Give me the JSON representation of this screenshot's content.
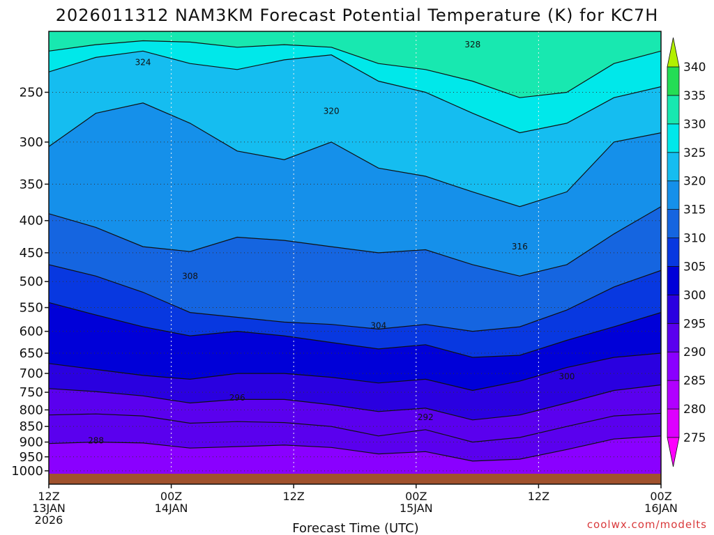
{
  "chart_data": {
    "type": "heatmap",
    "title": "2026011312 NAM3KM Forecast Potential Temperature (K) for KC7H",
    "xlabel": "Forecast Time (UTC)",
    "ylabel": "",
    "credit": "coolwx.com/modelts",
    "x_hours_range": [
      0,
      60
    ],
    "x_ticks": [
      {
        "hour": 0,
        "lines": [
          "12Z",
          "13JAN",
          "2026"
        ]
      },
      {
        "hour": 12,
        "lines": [
          "00Z",
          "14JAN"
        ]
      },
      {
        "hour": 24,
        "lines": [
          "12Z"
        ]
      },
      {
        "hour": 36,
        "lines": [
          "00Z",
          "15JAN"
        ]
      },
      {
        "hour": 48,
        "lines": [
          "12Z"
        ]
      },
      {
        "hour": 60,
        "lines": [
          "00Z",
          "16JAN"
        ]
      }
    ],
    "y_axis": "pressure (log scale, inverted)",
    "y_range_hpa": [
      1050,
      200
    ],
    "y_ticks": [
      250,
      300,
      350,
      400,
      450,
      500,
      550,
      600,
      650,
      700,
      750,
      800,
      850,
      900,
      950,
      1000
    ],
    "grid": true,
    "colorbar": {
      "levels": [
        275,
        280,
        285,
        290,
        295,
        300,
        305,
        310,
        315,
        320,
        325,
        330,
        335,
        340
      ],
      "colors": [
        "#ff00ff",
        "#dd00ff",
        "#b100ff",
        "#8a00ff",
        "#5a00ee",
        "#2a00e0",
        "#0000d8",
        "#0838e0",
        "#1565e0",
        "#1590ea",
        "#15bdf0",
        "#00e8ea",
        "#18e8b0",
        "#24dd55",
        "#6be818",
        "#b2f000"
      ]
    },
    "series": [
      {
        "theta": 288,
        "label_hpa": 895,
        "pressure_hpa": [
          905,
          900,
          903,
          920,
          915,
          910,
          918,
          940,
          932,
          965,
          958,
          925,
          890,
          880
        ]
      },
      {
        "theta": 292,
        "label_hpa": 822,
        "pressure_hpa": [
          815,
          812,
          818,
          840,
          835,
          838,
          850,
          880,
          860,
          900,
          885,
          850,
          818,
          810
        ]
      },
      {
        "theta": 296,
        "label_hpa": 765,
        "pressure_hpa": [
          740,
          748,
          760,
          780,
          770,
          770,
          785,
          805,
          795,
          830,
          815,
          780,
          745,
          730
        ]
      },
      {
        "theta": 300,
        "label_hpa": 708,
        "pressure_hpa": [
          675,
          690,
          705,
          715,
          700,
          700,
          710,
          725,
          715,
          745,
          720,
          685,
          660,
          650
        ]
      },
      {
        "theta": 304,
        "label_hpa": 588,
        "pressure_hpa": [
          540,
          565,
          590,
          610,
          600,
          610,
          625,
          640,
          630,
          660,
          655,
          620,
          590,
          560
        ]
      },
      {
        "theta": 308,
        "label_hpa": 490,
        "pressure_hpa": [
          470,
          490,
          520,
          560,
          570,
          580,
          585,
          595,
          585,
          600,
          590,
          555,
          510,
          480
        ]
      },
      {
        "theta": 316,
        "label_hpa": 440,
        "pressure_hpa": [
          390,
          410,
          440,
          448,
          425,
          430,
          440,
          450,
          445,
          470,
          490,
          470,
          420,
          380
        ]
      },
      {
        "theta": 320,
        "label_hpa": 268,
        "pressure_hpa": [
          305,
          270,
          260,
          280,
          310,
          320,
          300,
          330,
          340,
          360,
          380,
          360,
          300,
          290
        ]
      },
      {
        "theta": 324,
        "label_hpa": 224,
        "pressure_hpa": [
          232,
          220,
          215,
          225,
          230,
          222,
          218,
          240,
          250,
          270,
          290,
          280,
          255,
          245
        ]
      },
      {
        "theta": 328,
        "label_hpa": 210,
        "pressure_hpa": [
          215,
          210,
          207,
          208,
          212,
          210,
          212,
          225,
          230,
          240,
          255,
          250,
          225,
          215
        ]
      }
    ]
  }
}
